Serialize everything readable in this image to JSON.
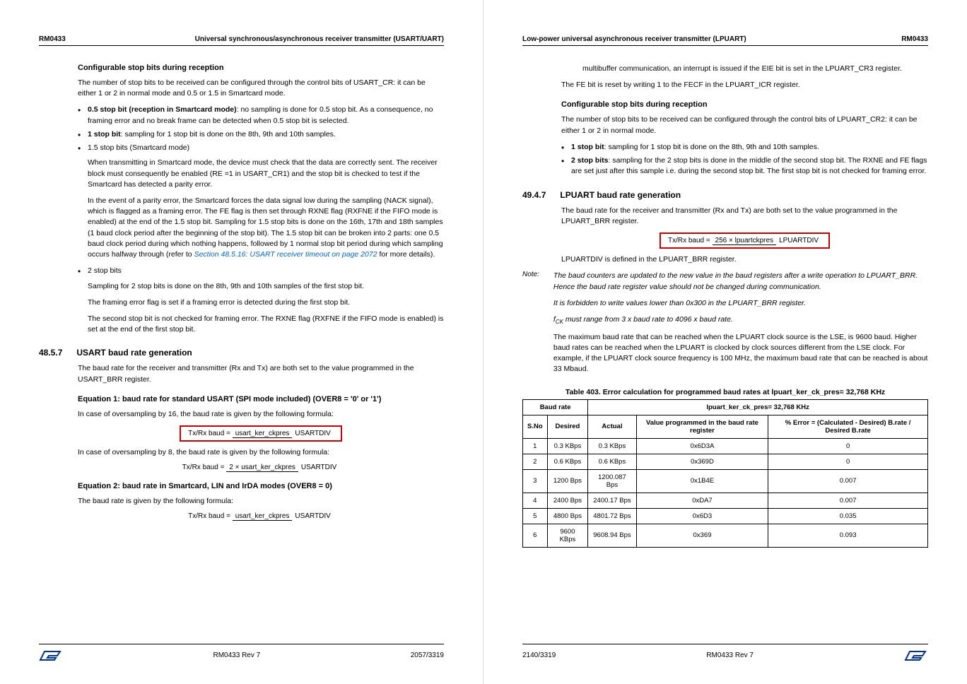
{
  "left": {
    "header": {
      "code": "RM0433",
      "title": "Universal synchronous/asynchronous receiver transmitter (USART/UART)"
    },
    "sec1": {
      "title": "Configurable stop bits during reception",
      "p1": "The number of stop bits to be received can be configured through the control bits of USART_CR: it can be either 1 or 2 in normal mode and 0.5 or 1.5 in Smartcard mode.",
      "b1": {
        "bold": "0.5 stop bit (reception in Smartcard mode)",
        "rest": ": no sampling is done for 0.5 stop bit. As a consequence, no framing error and no break frame can be detected when 0.5 stop bit is selected."
      },
      "b2": {
        "bold": "1 stop bit",
        "rest": ": sampling for 1 stop bit is done on the 8th, 9th and 10th samples."
      },
      "b3": "1.5 stop bits (Smartcard mode)",
      "b3p1": "When transmitting in Smartcard mode, the device must check that the data are correctly sent. The receiver block must consequently be enabled (RE =1 in USART_CR1) and the stop bit is checked to test if the Smartcard has detected a parity error.",
      "b3p2a": "In the event of a parity error, the Smartcard forces the data signal low during the sampling (NACK signal), which is flagged as a framing error. The FE flag is then set through RXNE flag (RXFNE if the FIFO mode is enabled) at the end of the 1.5 stop bit. Sampling for 1.5 stop bits is done on the 16th, 17th and 18th samples (1 baud clock period after the beginning of the stop bit). The 1.5 stop bit can be broken into 2 parts: one 0.5 baud clock period during which nothing happens, followed by 1 normal stop bit period during which sampling occurs halfway through (refer to ",
      "b3p2link": "Section 48.5.16: USART receiver timeout on page 2072",
      "b3p2b": " for more details).",
      "b4": "2 stop bits",
      "b4p1": "Sampling for 2 stop bits is done on the 8th, 9th and 10th samples of the first stop bit.",
      "b4p2": "The framing error flag is set if a framing error is detected during the first stop bit.",
      "b4p3": "The second stop bit is not checked for framing error. The RXNE flag (RXFNE if the FIFO mode is enabled) is set at the end of the first stop bit."
    },
    "sec2": {
      "num": "48.5.7",
      "title": "USART baud rate generation",
      "p1": "The baud rate for the receiver and transmitter (Rx and Tx) are both set to the value programmed in the USART_BRR register.",
      "eq1title": "Equation 1: baud rate for standard USART (SPI mode included) (OVER8 = '0' or '1')",
      "eq1p": "In case of oversampling by 16, the baud rate is given by the following formula:",
      "f1": {
        "lhs": "Tx/Rx baud",
        "num": "usart_ker_ckpres",
        "den": "USARTDIV"
      },
      "eq1p2": "In case of oversampling by 8, the baud rate is given by the following formula:",
      "f2": {
        "lhs": "Tx/Rx baud",
        "num": "2 × usart_ker_ckpres",
        "den": "USARTDIV"
      },
      "eq2title": "Equation 2: baud rate in Smartcard, LIN and IrDA modes (OVER8 = 0)",
      "eq2p": "The baud rate is given by the following formula:",
      "f3": {
        "lhs": "Tx/Rx baud",
        "num": "usart_ker_ckpres",
        "den": "USARTDIV"
      }
    },
    "footer": {
      "rev": "RM0433 Rev 7",
      "page": "2057/3319"
    }
  },
  "right": {
    "header": {
      "title": "Low-power universal asynchronous receiver transmitter (LPUART)",
      "code": "RM0433"
    },
    "top": {
      "p1": "multibuffer communication, an interrupt is issued if the EIE bit is set in the LPUART_CR3 register.",
      "p2": "The FE bit is reset by writing 1 to the FECF in the LPUART_ICR register."
    },
    "sec1": {
      "title": "Configurable stop bits during reception",
      "p1": "The number of stop bits to be received can be configured through the control bits of LPUART_CR2: it can be either 1 or 2 in normal mode.",
      "b1": {
        "bold": "1 stop bit",
        "rest": ": sampling for 1 stop bit is done on the 8th, 9th and 10th samples."
      },
      "b2": {
        "bold": "2 stop bits",
        "rest": ": sampling for the 2 stop bits is done in the middle of the second stop bit. The RXNE and FE flags are set just after this sample i.e. during the second stop bit. The first stop bit is not checked for framing error."
      }
    },
    "sec2": {
      "num": "49.4.7",
      "title": "LPUART baud rate generation",
      "p1": "The baud rate for the receiver and transmitter (Rx and Tx) are both set to the value programmed in the LPUART_BRR register.",
      "f1": {
        "lhs": "Tx/Rx baud",
        "num": "256 × lpuartckpres",
        "den": "LPUARTDIV"
      },
      "p2": "LPUARTDIV is defined in the LPUART_BRR register.",
      "noteLabel": "Note:",
      "note1": "The baud counters are updated to the new value in the baud registers after a write operation to LPUART_BRR. Hence the baud rate register value should not be changed during communication.",
      "note2": "It is forbidden to write values lower than 0x300 in the LPUART_BRR register.",
      "note3a": "f",
      "note3sub": "CK",
      "note3b": " must range from 3 x baud rate to 4096 x baud rate.",
      "p3": "The maximum baud rate that can be reached when the LPUART clock source is the LSE, is 9600 baud. Higher baud rates can be reached when the LPUART is clocked by clock sources different from the LSE clock. For example, if the LPUART clock source frequency is 100 MHz, the maximum baud rate that can be reached is about 33 Mbaud."
    },
    "table": {
      "title": "Table 403. Error calculation for programmed baud rates at lpuart_ker_ck_pres= 32,768 KHz",
      "h1": "Baud rate",
      "h2": "lpuart_ker_ck_pres= 32,768 KHz",
      "c1": "S.No",
      "c2": "Desired",
      "c3": "Actual",
      "c4": "Value programmed in the baud rate register",
      "c5": "% Error = (Calculated - Desired) B.rate / Desired B.rate",
      "rows": [
        [
          "1",
          "0.3 KBps",
          "0.3 KBps",
          "0x6D3A",
          "0"
        ],
        [
          "2",
          "0.6 KBps",
          "0.6 KBps",
          "0x369D",
          "0"
        ],
        [
          "3",
          "1200 Bps",
          "1200.087 Bps",
          "0x1B4E",
          "0.007"
        ],
        [
          "4",
          "2400 Bps",
          "2400.17 Bps",
          "0xDA7",
          "0.007"
        ],
        [
          "5",
          "4800 Bps",
          "4801.72 Bps",
          "0x6D3",
          "0.035"
        ],
        [
          "6",
          "9600 KBps",
          "9608.94 Bps",
          "0x369",
          "0.093"
        ]
      ]
    },
    "footer": {
      "page": "2140/3319",
      "rev": "RM0433 Rev 7"
    }
  }
}
